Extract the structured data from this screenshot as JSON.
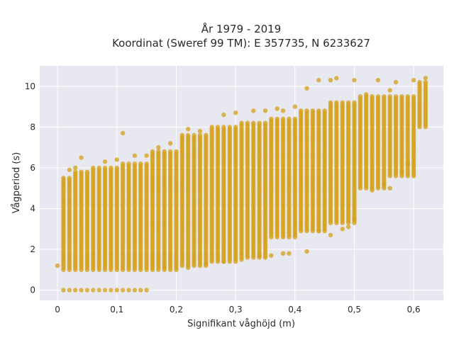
{
  "chart_data": {
    "type": "scatter",
    "title_line1": "År 1979 - 2019",
    "title_line2": "Koordinat (Sweref 99 TM): E 357735, N 6233627",
    "xlabel": "Signifikant våghöjd (m)",
    "ylabel": "Vågperiod (s)",
    "xlim": [
      -0.03,
      0.65
    ],
    "ylim": [
      -0.5,
      11.0
    ],
    "xticks": [
      0,
      0.1,
      0.2,
      0.3,
      0.4,
      0.5,
      0.6
    ],
    "xtick_labels": [
      "0",
      "0,1",
      "0,2",
      "0,3",
      "0,4",
      "0,5",
      "0,6"
    ],
    "yticks": [
      0,
      2,
      4,
      6,
      8,
      10
    ],
    "ytick_labels": [
      "0",
      "2",
      "4",
      "6",
      "8",
      "10"
    ],
    "grid": true,
    "x_step": 0.01,
    "marker_color": "#D4A017",
    "plot_bg": "#E8E8F0",
    "bands": [
      {
        "x0": 0.0,
        "x1": 0.0,
        "ylo": 1.2,
        "yhi": 1.2
      },
      {
        "x0": 0.01,
        "x1": 0.02,
        "ylo": 1.0,
        "yhi": 5.5
      },
      {
        "x0": 0.03,
        "x1": 0.05,
        "ylo": 1.0,
        "yhi": 5.8
      },
      {
        "x0": 0.06,
        "x1": 0.1,
        "ylo": 1.0,
        "yhi": 6.0
      },
      {
        "x0": 0.11,
        "x1": 0.15,
        "ylo": 1.0,
        "yhi": 6.2
      },
      {
        "x0": 0.16,
        "x1": 0.2,
        "ylo": 1.0,
        "yhi": 6.8
      },
      {
        "x0": 0.21,
        "x1": 0.25,
        "ylo": 1.2,
        "yhi": 7.6
      },
      {
        "x0": 0.26,
        "x1": 0.3,
        "ylo": 1.4,
        "yhi": 8.0
      },
      {
        "x0": 0.31,
        "x1": 0.35,
        "ylo": 1.6,
        "yhi": 8.2
      },
      {
        "x0": 0.36,
        "x1": 0.4,
        "ylo": 2.6,
        "yhi": 8.4
      },
      {
        "x0": 0.41,
        "x1": 0.45,
        "ylo": 2.9,
        "yhi": 8.8
      },
      {
        "x0": 0.46,
        "x1": 0.5,
        "ylo": 3.3,
        "yhi": 9.2
      },
      {
        "x0": 0.51,
        "x1": 0.55,
        "ylo": 5.0,
        "yhi": 9.5
      },
      {
        "x0": 0.56,
        "x1": 0.6,
        "ylo": 5.6,
        "yhi": 9.5
      },
      {
        "x0": 0.61,
        "x1": 0.62,
        "ylo": 8.0,
        "yhi": 10.2
      }
    ],
    "zero_row": {
      "y": 0,
      "x_values": [
        0.01,
        0.02,
        0.03,
        0.04,
        0.05,
        0.06,
        0.07,
        0.08,
        0.09,
        0.1,
        0.11,
        0.12,
        0.13,
        0.14,
        0.15
      ]
    },
    "outliers": [
      [
        0.11,
        7.7
      ],
      [
        0.13,
        6.6
      ],
      [
        0.17,
        7.0
      ],
      [
        0.19,
        7.2
      ],
      [
        0.22,
        7.9
      ],
      [
        0.24,
        7.8
      ],
      [
        0.28,
        8.6
      ],
      [
        0.3,
        8.7
      ],
      [
        0.33,
        8.8
      ],
      [
        0.35,
        8.8
      ],
      [
        0.37,
        8.9
      ],
      [
        0.38,
        8.8
      ],
      [
        0.4,
        9.0
      ],
      [
        0.42,
        9.9
      ],
      [
        0.44,
        10.3
      ],
      [
        0.46,
        10.3
      ],
      [
        0.47,
        10.4
      ],
      [
        0.5,
        10.3
      ],
      [
        0.54,
        10.3
      ],
      [
        0.57,
        10.2
      ],
      [
        0.6,
        10.3
      ],
      [
        0.62,
        10.4
      ],
      [
        0.52,
        9.6
      ],
      [
        0.56,
        9.8
      ],
      [
        0.02,
        5.9
      ],
      [
        0.03,
        6.0
      ],
      [
        0.04,
        6.5
      ],
      [
        0.08,
        6.3
      ],
      [
        0.1,
        6.4
      ],
      [
        0.15,
        6.6
      ],
      [
        0.18,
        1.1
      ],
      [
        0.22,
        1.1
      ],
      [
        0.25,
        1.3
      ],
      [
        0.28,
        1.4
      ],
      [
        0.31,
        1.5
      ],
      [
        0.34,
        1.7
      ],
      [
        0.36,
        1.7
      ],
      [
        0.38,
        1.8
      ],
      [
        0.39,
        1.8
      ],
      [
        0.42,
        1.9
      ],
      [
        0.44,
        2.9
      ],
      [
        0.46,
        2.7
      ],
      [
        0.48,
        3.0
      ],
      [
        0.49,
        3.1
      ],
      [
        0.5,
        3.5
      ],
      [
        0.53,
        4.9
      ],
      [
        0.55,
        5.2
      ],
      [
        0.56,
        5.0
      ],
      [
        0.58,
        5.8
      ],
      [
        0.59,
        6.2
      ]
    ]
  }
}
